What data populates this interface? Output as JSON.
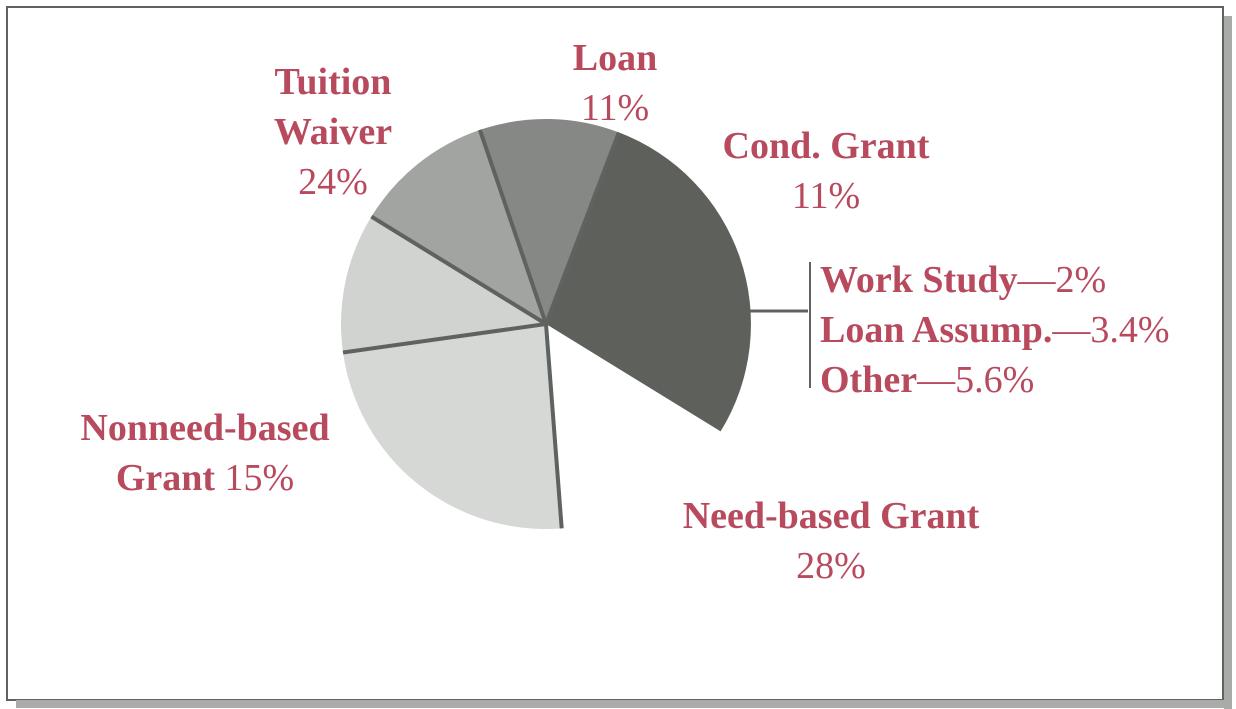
{
  "chart_data": {
    "type": "pie",
    "title": "",
    "colors": {
      "label": "#b84a5e",
      "separator": "#5f6360",
      "frame": "#5f6360"
    },
    "slices": [
      {
        "name": "Loan",
        "value": 11,
        "label": "11%",
        "color": "#d1d3d1"
      },
      {
        "name": "Cond. Grant",
        "value": 11,
        "label": "11%",
        "color": "#a2a4a2"
      },
      {
        "name": "Work Study / Loan Assump. / Other",
        "value": 11,
        "label": "",
        "color": "#868886"
      },
      {
        "name": "Need-based Grant",
        "value": 28,
        "label": "28%",
        "color": "#5d605b"
      },
      {
        "name": "Nonneed-based Grant",
        "value": 15,
        "label": "15%",
        "color": "#ffffff",
        "exploded": true
      },
      {
        "name": "Tuition Waiver",
        "value": 24,
        "label": "24%",
        "color": "#d6d8d6"
      }
    ],
    "grouped": [
      {
        "name": "Work Study",
        "value": 2,
        "label": "—2%"
      },
      {
        "name": "Loan Assump.",
        "value": 3.4,
        "label": "—3.4%"
      },
      {
        "name": "Other",
        "value": 5.6,
        "label": "—5.6%"
      }
    ],
    "labels": {
      "loan": {
        "line1": "Loan",
        "pct": "11%"
      },
      "cond_grant": {
        "line1": "Cond. Grant",
        "pct": "11%"
      },
      "tuition": {
        "line1": "Tuition",
        "line2": "Waiver",
        "pct": "24%"
      },
      "nonneed": {
        "line1": "Nonneed-based",
        "line2": "Grant",
        "pct": " 15%"
      },
      "need": {
        "line1": "Need-based Grant",
        "pct": "28%"
      }
    }
  }
}
